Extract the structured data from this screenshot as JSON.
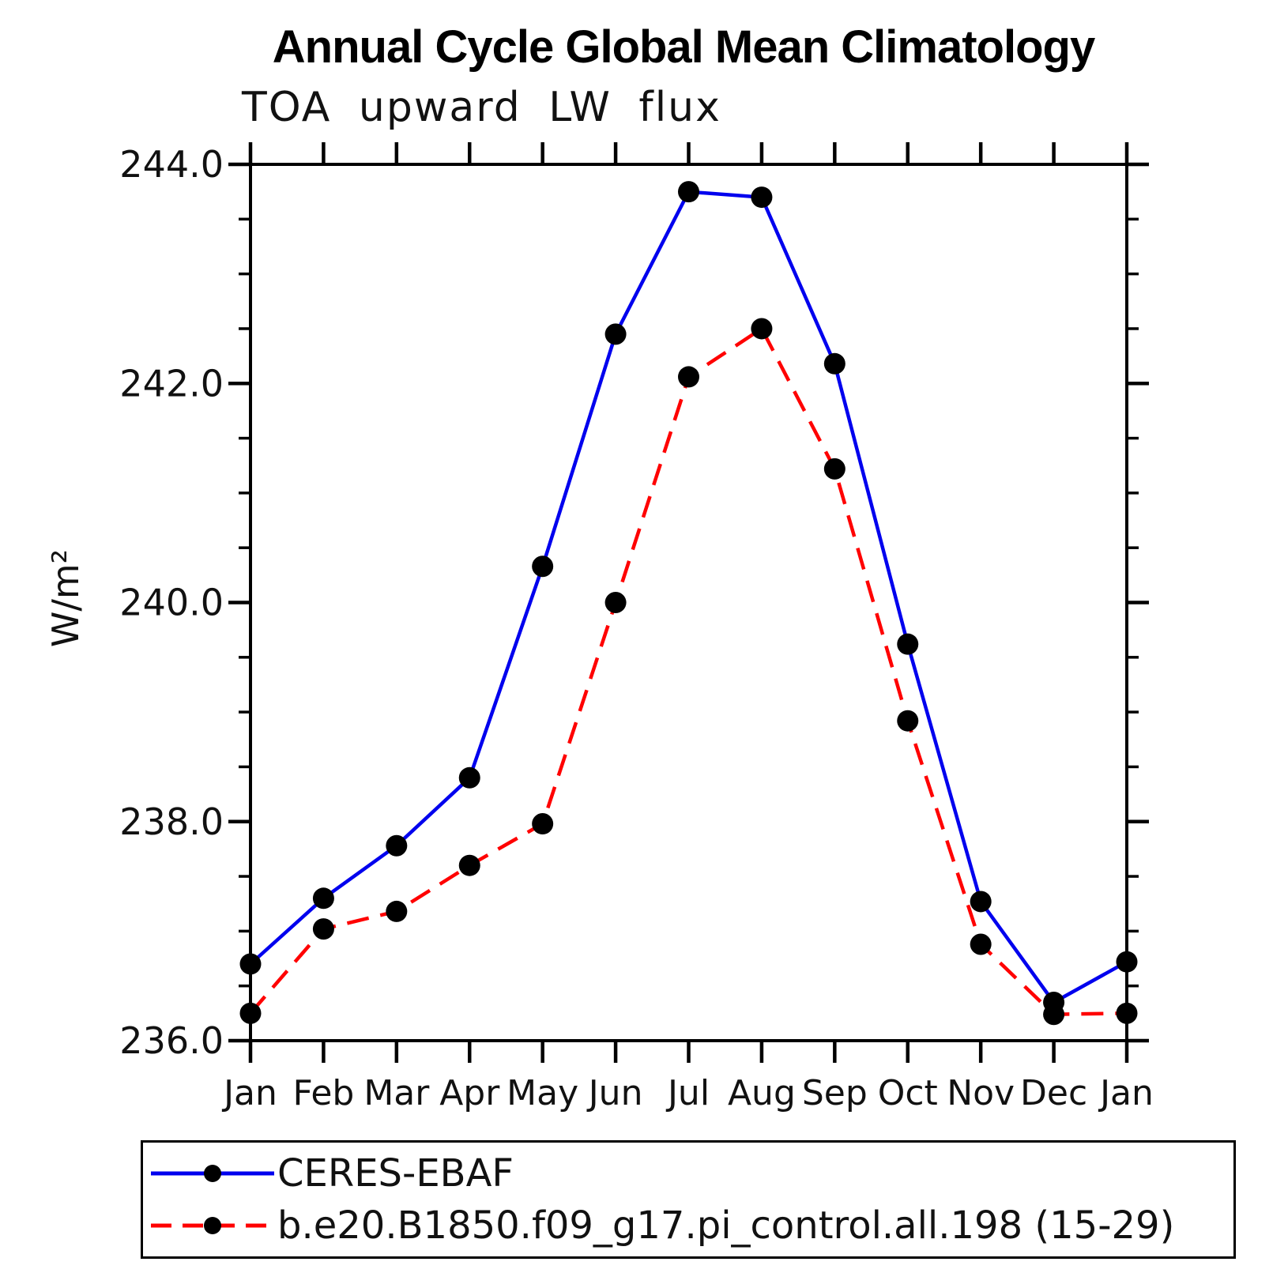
{
  "header": {
    "title": "Annual Cycle Global Mean Climatology",
    "subtitle": "TOA upward LW flux"
  },
  "chart_data": {
    "type": "line",
    "categories": [
      "Jan",
      "Feb",
      "Mar",
      "Apr",
      "May",
      "Jun",
      "Jul",
      "Aug",
      "Sep",
      "Oct",
      "Nov",
      "Dec",
      "Jan"
    ],
    "series": [
      {
        "name": "CERES-EBAF",
        "color": "#0000ee",
        "line_style": "solid",
        "marker": "black-dot",
        "values": [
          236.7,
          237.3,
          237.78,
          238.4,
          240.33,
          242.45,
          243.75,
          243.7,
          242.18,
          239.62,
          237.27,
          236.35,
          236.72
        ]
      },
      {
        "name": "b.e20.B1850.f09_g17.pi_control.all.198 (15-29)",
        "color": "#ff0000",
        "line_style": "dashed",
        "marker": "black-dot",
        "values": [
          236.25,
          237.02,
          237.18,
          237.6,
          237.98,
          240.0,
          242.06,
          242.5,
          241.22,
          238.92,
          236.88,
          236.24,
          236.25
        ]
      }
    ],
    "title": "Annual Cycle Global Mean Climatology",
    "subtitle": "TOA upward LW flux",
    "xlabel": "",
    "ylabel": "W/m²",
    "ylim": [
      236.0,
      244.0
    ],
    "ytick_major": 2.0,
    "ytick_minor": 0.5,
    "ytick_labels": [
      "236.0",
      "238.0",
      "240.0",
      "242.0",
      "244.0"
    ],
    "grid": false,
    "legend_position": "bottom",
    "marker_color": "#000000",
    "axis_color": "#000000"
  }
}
